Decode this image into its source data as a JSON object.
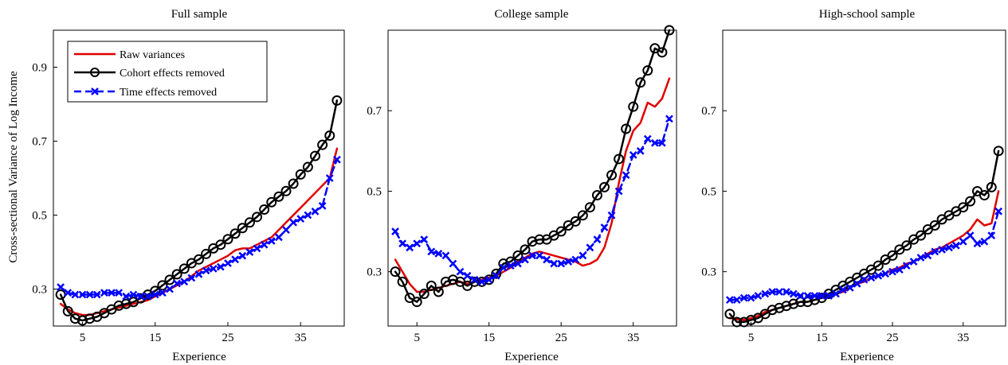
{
  "figure": {
    "ylabel": "Cross-sectional Variance of Log Income"
  },
  "legend": {
    "entries": [
      {
        "label": "Raw variances",
        "color": "#e00000",
        "style": "solid"
      },
      {
        "label": "Cohort effects removed",
        "color": "#000000",
        "style": "solid-circle-markers"
      },
      {
        "label": "Time effects removed",
        "color": "#0000ff",
        "style": "dashed-x-markers"
      }
    ],
    "placement": "top-left of first panel"
  },
  "chart_data": [
    {
      "type": "line",
      "title": "Full sample",
      "xlabel": "Experience",
      "ylabel": "Cross-sectional Variance of Log Income",
      "xlim": [
        1,
        41
      ],
      "ylim": [
        0.2,
        1.0
      ],
      "xticks": [
        5,
        15,
        25,
        35
      ],
      "yticks": [
        0.3,
        0.5,
        0.7,
        0.9
      ],
      "ytick_labels": [
        "0.3",
        "0.5",
        "0.7",
        "0.9"
      ],
      "grid": false,
      "series": [
        {
          "name": "Raw variances",
          "color": "#e00000",
          "x": [
            2,
            3,
            4,
            5,
            6,
            7,
            8,
            9,
            10,
            11,
            12,
            13,
            14,
            15,
            16,
            17,
            18,
            19,
            20,
            21,
            22,
            23,
            24,
            25,
            26,
            27,
            28,
            29,
            30,
            31,
            32,
            33,
            34,
            35,
            36,
            37,
            38,
            39,
            40
          ],
          "y": [
            0.26,
            0.245,
            0.235,
            0.23,
            0.23,
            0.235,
            0.24,
            0.245,
            0.25,
            0.255,
            0.26,
            0.265,
            0.27,
            0.28,
            0.29,
            0.3,
            0.31,
            0.32,
            0.335,
            0.35,
            0.36,
            0.37,
            0.38,
            0.39,
            0.405,
            0.41,
            0.41,
            0.42,
            0.43,
            0.44,
            0.46,
            0.48,
            0.5,
            0.52,
            0.54,
            0.56,
            0.58,
            0.6,
            0.68
          ]
        },
        {
          "name": "Cohort effects removed",
          "color": "#000000",
          "x": [
            2,
            3,
            4,
            5,
            6,
            7,
            8,
            9,
            10,
            11,
            12,
            13,
            14,
            15,
            16,
            17,
            18,
            19,
            20,
            21,
            22,
            23,
            24,
            25,
            26,
            27,
            28,
            29,
            30,
            31,
            32,
            33,
            34,
            35,
            36,
            37,
            38,
            39,
            40
          ],
          "y": [
            0.285,
            0.24,
            0.22,
            0.215,
            0.22,
            0.225,
            0.235,
            0.245,
            0.255,
            0.26,
            0.265,
            0.275,
            0.285,
            0.295,
            0.31,
            0.325,
            0.34,
            0.355,
            0.37,
            0.38,
            0.395,
            0.41,
            0.42,
            0.435,
            0.45,
            0.465,
            0.48,
            0.495,
            0.515,
            0.535,
            0.55,
            0.565,
            0.585,
            0.61,
            0.63,
            0.66,
            0.69,
            0.715,
            0.81
          ]
        },
        {
          "name": "Time effects removed",
          "color": "#0000ff",
          "x": [
            2,
            3,
            4,
            5,
            6,
            7,
            8,
            9,
            10,
            11,
            12,
            13,
            14,
            15,
            16,
            17,
            18,
            19,
            20,
            21,
            22,
            23,
            24,
            25,
            26,
            27,
            28,
            29,
            30,
            31,
            32,
            33,
            34,
            35,
            36,
            37,
            38,
            39,
            40
          ],
          "y": [
            0.305,
            0.29,
            0.285,
            0.285,
            0.285,
            0.285,
            0.29,
            0.29,
            0.29,
            0.28,
            0.285,
            0.28,
            0.28,
            0.285,
            0.29,
            0.3,
            0.315,
            0.32,
            0.33,
            0.34,
            0.35,
            0.355,
            0.36,
            0.37,
            0.38,
            0.39,
            0.4,
            0.41,
            0.42,
            0.43,
            0.44,
            0.46,
            0.48,
            0.49,
            0.5,
            0.51,
            0.525,
            0.6,
            0.65
          ]
        }
      ]
    },
    {
      "type": "line",
      "title": "College sample",
      "xlabel": "Experience",
      "xlim": [
        1,
        41
      ],
      "ylim": [
        0.165,
        0.9
      ],
      "xticks": [
        5,
        15,
        25,
        35
      ],
      "yticks": [
        0.3,
        0.5,
        0.7
      ],
      "ytick_labels": [
        "0.3",
        "0.5",
        "0.7"
      ],
      "grid": false,
      "series": [
        {
          "name": "Raw variances",
          "color": "#e00000",
          "x": [
            2,
            3,
            4,
            5,
            6,
            7,
            8,
            9,
            10,
            11,
            12,
            13,
            14,
            15,
            16,
            17,
            18,
            19,
            20,
            21,
            22,
            23,
            24,
            25,
            26,
            27,
            28,
            29,
            30,
            31,
            32,
            33,
            34,
            35,
            36,
            37,
            38,
            39,
            40
          ],
          "y": [
            0.33,
            0.3,
            0.27,
            0.25,
            0.25,
            0.255,
            0.26,
            0.265,
            0.27,
            0.275,
            0.27,
            0.275,
            0.28,
            0.285,
            0.29,
            0.3,
            0.31,
            0.325,
            0.335,
            0.345,
            0.35,
            0.345,
            0.34,
            0.335,
            0.33,
            0.325,
            0.315,
            0.32,
            0.33,
            0.36,
            0.42,
            0.52,
            0.6,
            0.65,
            0.67,
            0.72,
            0.71,
            0.73,
            0.78
          ]
        },
        {
          "name": "Cohort effects removed",
          "color": "#000000",
          "x": [
            2,
            3,
            4,
            5,
            6,
            7,
            8,
            9,
            10,
            11,
            12,
            13,
            14,
            15,
            16,
            17,
            18,
            19,
            20,
            21,
            22,
            23,
            24,
            25,
            26,
            27,
            28,
            29,
            30,
            31,
            32,
            33,
            34,
            35,
            36,
            37,
            38,
            39,
            40
          ],
          "y": [
            0.3,
            0.275,
            0.235,
            0.225,
            0.245,
            0.265,
            0.25,
            0.275,
            0.28,
            0.275,
            0.265,
            0.275,
            0.275,
            0.28,
            0.295,
            0.32,
            0.325,
            0.34,
            0.355,
            0.375,
            0.38,
            0.38,
            0.39,
            0.4,
            0.415,
            0.425,
            0.44,
            0.46,
            0.49,
            0.51,
            0.54,
            0.58,
            0.655,
            0.71,
            0.77,
            0.8,
            0.855,
            0.845,
            0.9
          ]
        },
        {
          "name": "Time effects removed",
          "color": "#0000ff",
          "x": [
            2,
            3,
            4,
            5,
            6,
            7,
            8,
            9,
            10,
            11,
            12,
            13,
            14,
            15,
            16,
            17,
            18,
            19,
            20,
            21,
            22,
            23,
            24,
            25,
            26,
            27,
            28,
            29,
            30,
            31,
            32,
            33,
            34,
            35,
            36,
            37,
            38,
            39,
            40
          ],
          "y": [
            0.4,
            0.37,
            0.36,
            0.37,
            0.38,
            0.35,
            0.345,
            0.34,
            0.32,
            0.3,
            0.29,
            0.28,
            0.275,
            0.28,
            0.29,
            0.31,
            0.315,
            0.32,
            0.33,
            0.34,
            0.34,
            0.33,
            0.32,
            0.32,
            0.325,
            0.33,
            0.34,
            0.36,
            0.38,
            0.41,
            0.44,
            0.5,
            0.54,
            0.59,
            0.6,
            0.63,
            0.62,
            0.62,
            0.68
          ]
        }
      ]
    },
    {
      "type": "line",
      "title": "High-school sample",
      "xlabel": "Experience",
      "xlim": [
        1,
        41
      ],
      "ylim": [
        0.165,
        0.9
      ],
      "xticks": [
        5,
        15,
        25,
        35
      ],
      "yticks": [
        0.3,
        0.5,
        0.7
      ],
      "ytick_labels": [
        "0.3",
        "0.5",
        "0.7"
      ],
      "grid": false,
      "series": [
        {
          "name": "Raw variances",
          "color": "#e00000",
          "x": [
            2,
            3,
            4,
            5,
            6,
            7,
            8,
            9,
            10,
            11,
            12,
            13,
            14,
            15,
            16,
            17,
            18,
            19,
            20,
            21,
            22,
            23,
            24,
            25,
            26,
            27,
            28,
            29,
            30,
            31,
            32,
            33,
            34,
            35,
            36,
            37,
            38,
            39,
            40
          ],
          "y": [
            0.185,
            0.182,
            0.18,
            0.185,
            0.19,
            0.2,
            0.205,
            0.21,
            0.215,
            0.22,
            0.225,
            0.225,
            0.23,
            0.235,
            0.24,
            0.245,
            0.25,
            0.26,
            0.27,
            0.275,
            0.285,
            0.29,
            0.295,
            0.305,
            0.31,
            0.32,
            0.325,
            0.335,
            0.345,
            0.355,
            0.36,
            0.37,
            0.38,
            0.39,
            0.405,
            0.43,
            0.415,
            0.42,
            0.5
          ]
        },
        {
          "name": "Cohort effects removed",
          "color": "#000000",
          "x": [
            2,
            3,
            4,
            5,
            6,
            7,
            8,
            9,
            10,
            11,
            12,
            13,
            14,
            15,
            16,
            17,
            18,
            19,
            20,
            21,
            22,
            23,
            24,
            25,
            26,
            27,
            28,
            29,
            30,
            31,
            32,
            33,
            34,
            35,
            36,
            37,
            38,
            39,
            40
          ],
          "y": [
            0.195,
            0.175,
            0.175,
            0.18,
            0.185,
            0.195,
            0.205,
            0.21,
            0.215,
            0.22,
            0.225,
            0.225,
            0.23,
            0.235,
            0.245,
            0.255,
            0.265,
            0.275,
            0.285,
            0.295,
            0.305,
            0.315,
            0.33,
            0.34,
            0.355,
            0.365,
            0.38,
            0.39,
            0.405,
            0.415,
            0.43,
            0.44,
            0.45,
            0.46,
            0.475,
            0.5,
            0.49,
            0.51,
            0.6
          ]
        },
        {
          "name": "Time effects removed",
          "color": "#0000ff",
          "x": [
            2,
            3,
            4,
            5,
            6,
            7,
            8,
            9,
            10,
            11,
            12,
            13,
            14,
            15,
            16,
            17,
            18,
            19,
            20,
            21,
            22,
            23,
            24,
            25,
            26,
            27,
            28,
            29,
            30,
            31,
            32,
            33,
            34,
            35,
            36,
            37,
            38,
            39,
            40
          ],
          "y": [
            0.23,
            0.23,
            0.235,
            0.235,
            0.24,
            0.245,
            0.25,
            0.25,
            0.25,
            0.245,
            0.24,
            0.24,
            0.24,
            0.24,
            0.24,
            0.245,
            0.255,
            0.26,
            0.27,
            0.28,
            0.285,
            0.29,
            0.295,
            0.3,
            0.305,
            0.315,
            0.325,
            0.335,
            0.34,
            0.35,
            0.355,
            0.36,
            0.365,
            0.375,
            0.39,
            0.37,
            0.375,
            0.39,
            0.45
          ]
        }
      ]
    }
  ]
}
